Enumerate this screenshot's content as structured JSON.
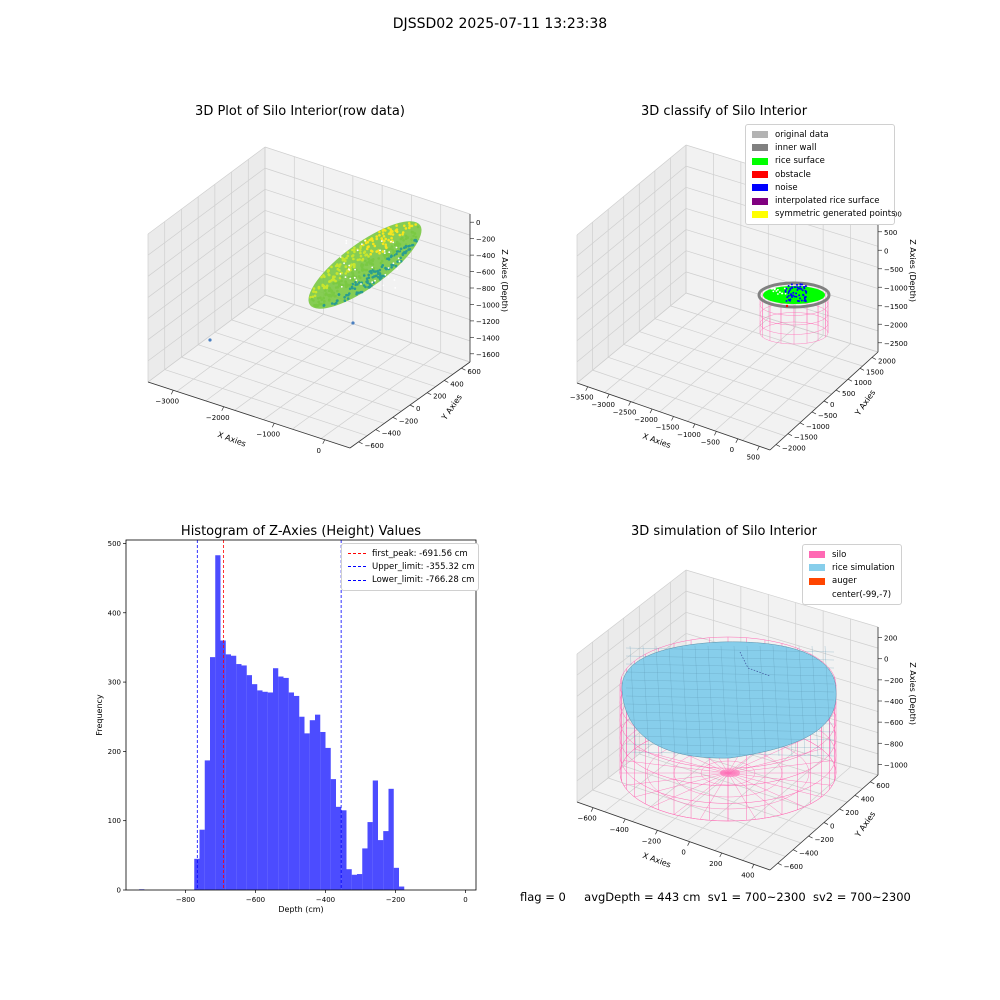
{
  "suptitle": "DJSSD02 2025-07-11 13:23:38",
  "chart_data": [
    {
      "type": "scatter",
      "title": "3D Plot of Silo Interior(row data)",
      "xlabel": "X Axies",
      "ylabel": "Y Axies",
      "zlabel": "Z Axies (Depth)",
      "x_ticks": [
        "−3000",
        "−2000",
        "−1000",
        "0"
      ],
      "y_ticks": [
        "−600",
        "−400",
        "−200",
        "0",
        "200",
        "400",
        "600"
      ],
      "z_ticks": [
        "0",
        "−200",
        "−400",
        "−600",
        "−800",
        "−1000",
        "−1200",
        "−1400",
        "−1600"
      ],
      "colors": [
        "#2a9d8f",
        "#7ac943",
        "#c8e62d",
        "#f5e61e",
        "#4a7fc0"
      ]
    },
    {
      "type": "scatter",
      "title": "3D classify of Silo Interior",
      "xlabel": "X Axies",
      "ylabel": "Y Axies",
      "zlabel": "Z Axies (Depth)",
      "x_ticks": [
        "−3500",
        "−3000",
        "−2500",
        "−2000",
        "−1500",
        "−1000",
        "−500",
        "0",
        "500"
      ],
      "y_ticks": [
        "−2000",
        "−1500",
        "−1000",
        "−500",
        "0",
        "500",
        "1000",
        "1500",
        "2000"
      ],
      "z_ticks": [
        "1000",
        "500",
        "0",
        "−500",
        "−1000",
        "−1500",
        "−2000",
        "−2500"
      ],
      "legend": [
        {
          "label": "original data",
          "color": "#b3b3b3"
        },
        {
          "label": "inner wall",
          "color": "#808080"
        },
        {
          "label": "rice surface",
          "color": "#00ff00"
        },
        {
          "label": "obstacle",
          "color": "#ff0000"
        },
        {
          "label": "noise",
          "color": "#0000ff"
        },
        {
          "label": "interpolated rice surface",
          "color": "#800080"
        },
        {
          "label": "symmetric generated points",
          "color": "#ffff00"
        }
      ]
    },
    {
      "type": "bar",
      "title": "Histogram of Z-Axies (Height) Values",
      "xlabel": "Depth (cm)",
      "ylabel": "Frequency",
      "xlim": [
        -970,
        30
      ],
      "ylim": [
        0,
        505
      ],
      "bar_color": "#0000ff",
      "bin_start": -775,
      "bin_width": 15,
      "values": [
        45,
        87,
        187,
        336,
        483,
        360,
        340,
        338,
        326,
        324,
        310,
        297,
        288,
        286,
        285,
        320,
        308,
        306,
        285,
        280,
        250,
        226,
        245,
        253,
        228,
        205,
        160,
        120,
        115,
        30,
        22,
        23,
        60,
        98,
        158,
        72,
        85,
        146,
        32,
        5
      ],
      "outliers": [
        {
          "x": -925,
          "count": 1
        }
      ],
      "x_ticks": [
        {
          "value": -800,
          "label": "−800"
        },
        {
          "value": -600,
          "label": "−600"
        },
        {
          "value": -400,
          "label": "−400"
        },
        {
          "value": -200,
          "label": "−200"
        },
        {
          "value": 0,
          "label": "0"
        }
      ],
      "y_ticks": [
        {
          "value": 0,
          "label": "0"
        },
        {
          "value": 100,
          "label": "100"
        },
        {
          "value": 200,
          "label": "200"
        },
        {
          "value": 300,
          "label": "300"
        },
        {
          "value": 400,
          "label": "400"
        },
        {
          "value": 500,
          "label": "500"
        }
      ],
      "lines": [
        {
          "label": "first_peak: -691.56 cm",
          "value": -691.56,
          "color": "#ff0000"
        },
        {
          "label": "Upper_limit: -355.32 cm",
          "value": -355.32,
          "color": "#0000ff"
        },
        {
          "label": "Lower_limit: -766.28 cm",
          "value": -766.28,
          "color": "#0000ff"
        }
      ]
    },
    {
      "type": "scatter",
      "title": "3D simulation of Silo Interior",
      "xlabel": "X Axies",
      "ylabel": "Y Axies",
      "zlabel": "Z Axies (Depth)",
      "x_ticks": [
        "−600",
        "−400",
        "−200",
        "0",
        "200",
        "400"
      ],
      "y_ticks": [
        "−600",
        "−400",
        "−200",
        "0",
        "200",
        "400",
        "600"
      ],
      "z_ticks": [
        "200",
        "0",
        "−200",
        "−400",
        "−600",
        "−800",
        "−1000"
      ],
      "legend": [
        {
          "label": "silo",
          "color": "#ff69b4"
        },
        {
          "label": "rice simulation",
          "color": "#87ceeb"
        },
        {
          "label": "auger",
          "color": "#ff4500"
        },
        {
          "label": "center(-99,-7)",
          "color": ""
        }
      ]
    }
  ],
  "footer": {
    "flag": "flag = 0",
    "avg": "avgDepth = 443 cm",
    "sv1": "sv1 = 700~2300",
    "sv2": "sv2 = 700~2300"
  }
}
